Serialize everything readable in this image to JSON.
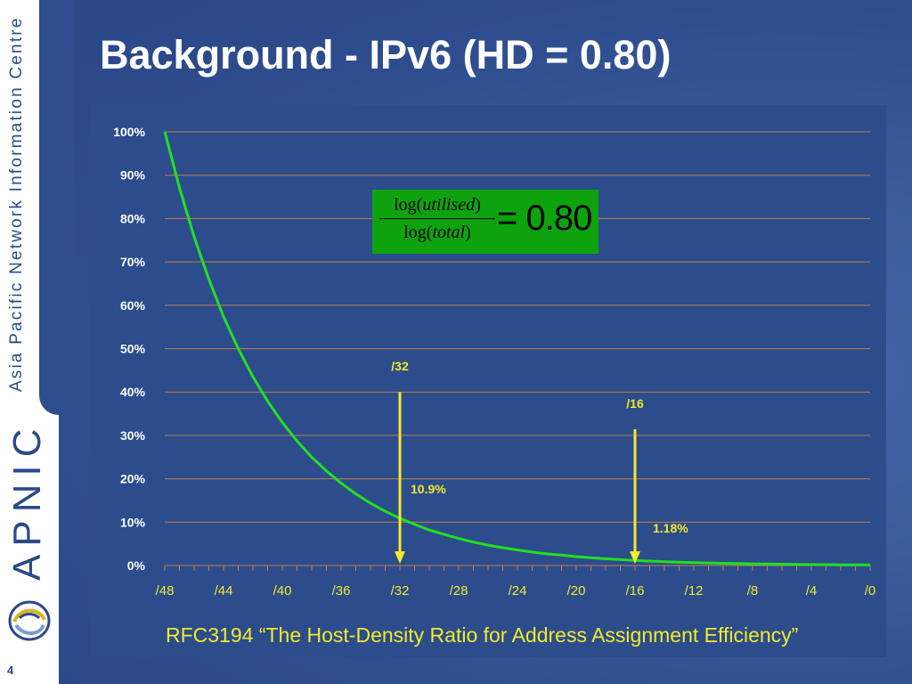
{
  "slide": {
    "title": "Background - IPv6 (HD = 0.80)",
    "page_number": "4",
    "caption": "RFC3194 “The Host-Density Ratio for Address Assignment Efficiency”",
    "sidebar_text": "Asia Pacific Network Information Centre",
    "logo_text": "APNIC"
  },
  "formula": {
    "numerator_prefix": "log(",
    "numerator_var": "utilised",
    "numerator_suffix": ")",
    "denominator_prefix": "log(",
    "denominator_var": "total",
    "denominator_suffix": ")",
    "equals": "= 0.80",
    "value": 0.8
  },
  "colors": {
    "curve": "#22e022",
    "arrow": "#f2ea2a",
    "gridline": "#c0804f",
    "formula_box": "#0ea30e",
    "text": "#ffffff"
  },
  "chart_data": {
    "type": "line",
    "title": "",
    "xlabel": "",
    "ylabel": "",
    "x_tick_labels": [
      "/48",
      "/44",
      "/40",
      "/36",
      "/32",
      "/28",
      "/24",
      "/20",
      "/16",
      "/12",
      "/8",
      "/4",
      "/0"
    ],
    "y_tick_labels": [
      "0%",
      "10%",
      "20%",
      "30%",
      "40%",
      "50%",
      "60%",
      "70%",
      "80%",
      "90%",
      "100%"
    ],
    "xlim": [
      48,
      0
    ],
    "ylim": [
      0,
      100
    ],
    "grid": true,
    "series": [
      {
        "x": [
          48,
          47,
          46,
          45,
          44,
          43,
          42,
          41,
          40,
          39,
          38,
          37,
          36,
          35,
          34,
          33,
          32,
          31,
          30,
          29,
          28,
          27,
          26,
          25,
          24,
          23,
          22,
          21,
          20,
          19,
          18,
          17,
          16,
          15,
          14,
          13,
          12,
          11,
          10,
          9,
          8,
          7,
          6,
          5,
          4,
          3,
          2,
          1,
          0
        ],
        "y": [
          100,
          87.1,
          75.8,
          66.0,
          57.4,
          50.0,
          43.5,
          37.9,
          33.0,
          28.7,
          25.0,
          21.8,
          19.0,
          16.5,
          14.4,
          12.5,
          10.9,
          9.5,
          8.2,
          7.2,
          6.25,
          5.4,
          4.7,
          4.1,
          3.6,
          3.1,
          2.7,
          2.4,
          2.05,
          1.79,
          1.56,
          1.36,
          1.18,
          1.03,
          0.9,
          0.78,
          0.68,
          0.59,
          0.51,
          0.45,
          0.39,
          0.34,
          0.3,
          0.26,
          0.22,
          0.2,
          0.17,
          0.15,
          0.13
        ]
      }
    ],
    "annotations": [
      {
        "x": 32,
        "label_top": "/32",
        "label_value": "10.9%"
      },
      {
        "x": 16,
        "label_top": "/16",
        "label_value": "1.18%"
      }
    ]
  }
}
